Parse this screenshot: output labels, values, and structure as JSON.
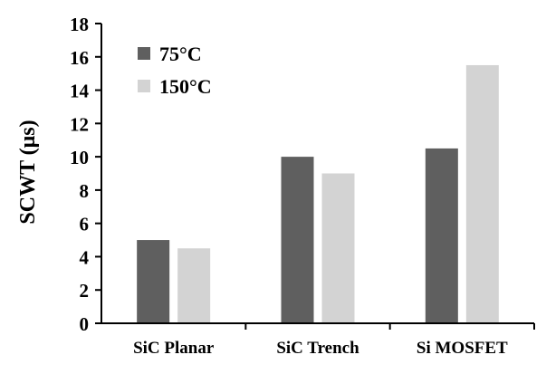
{
  "chart_data": {
    "type": "bar",
    "title": "",
    "xlabel": "",
    "ylabel": "SCWT (μs)",
    "ylim": [
      0,
      18
    ],
    "yticks": [
      0,
      2,
      4,
      6,
      8,
      10,
      12,
      14,
      16,
      18
    ],
    "grid": false,
    "legend_position": "top-left",
    "categories": [
      "SiC Planar",
      "SiC Trench",
      "Si MOSFET"
    ],
    "series": [
      {
        "name": "75°C",
        "color": "#5f5f5f",
        "values": [
          5.0,
          10.0,
          10.5
        ]
      },
      {
        "name": "150°C",
        "color": "#d3d3d3",
        "values": [
          4.5,
          9.0,
          15.5
        ]
      }
    ]
  }
}
